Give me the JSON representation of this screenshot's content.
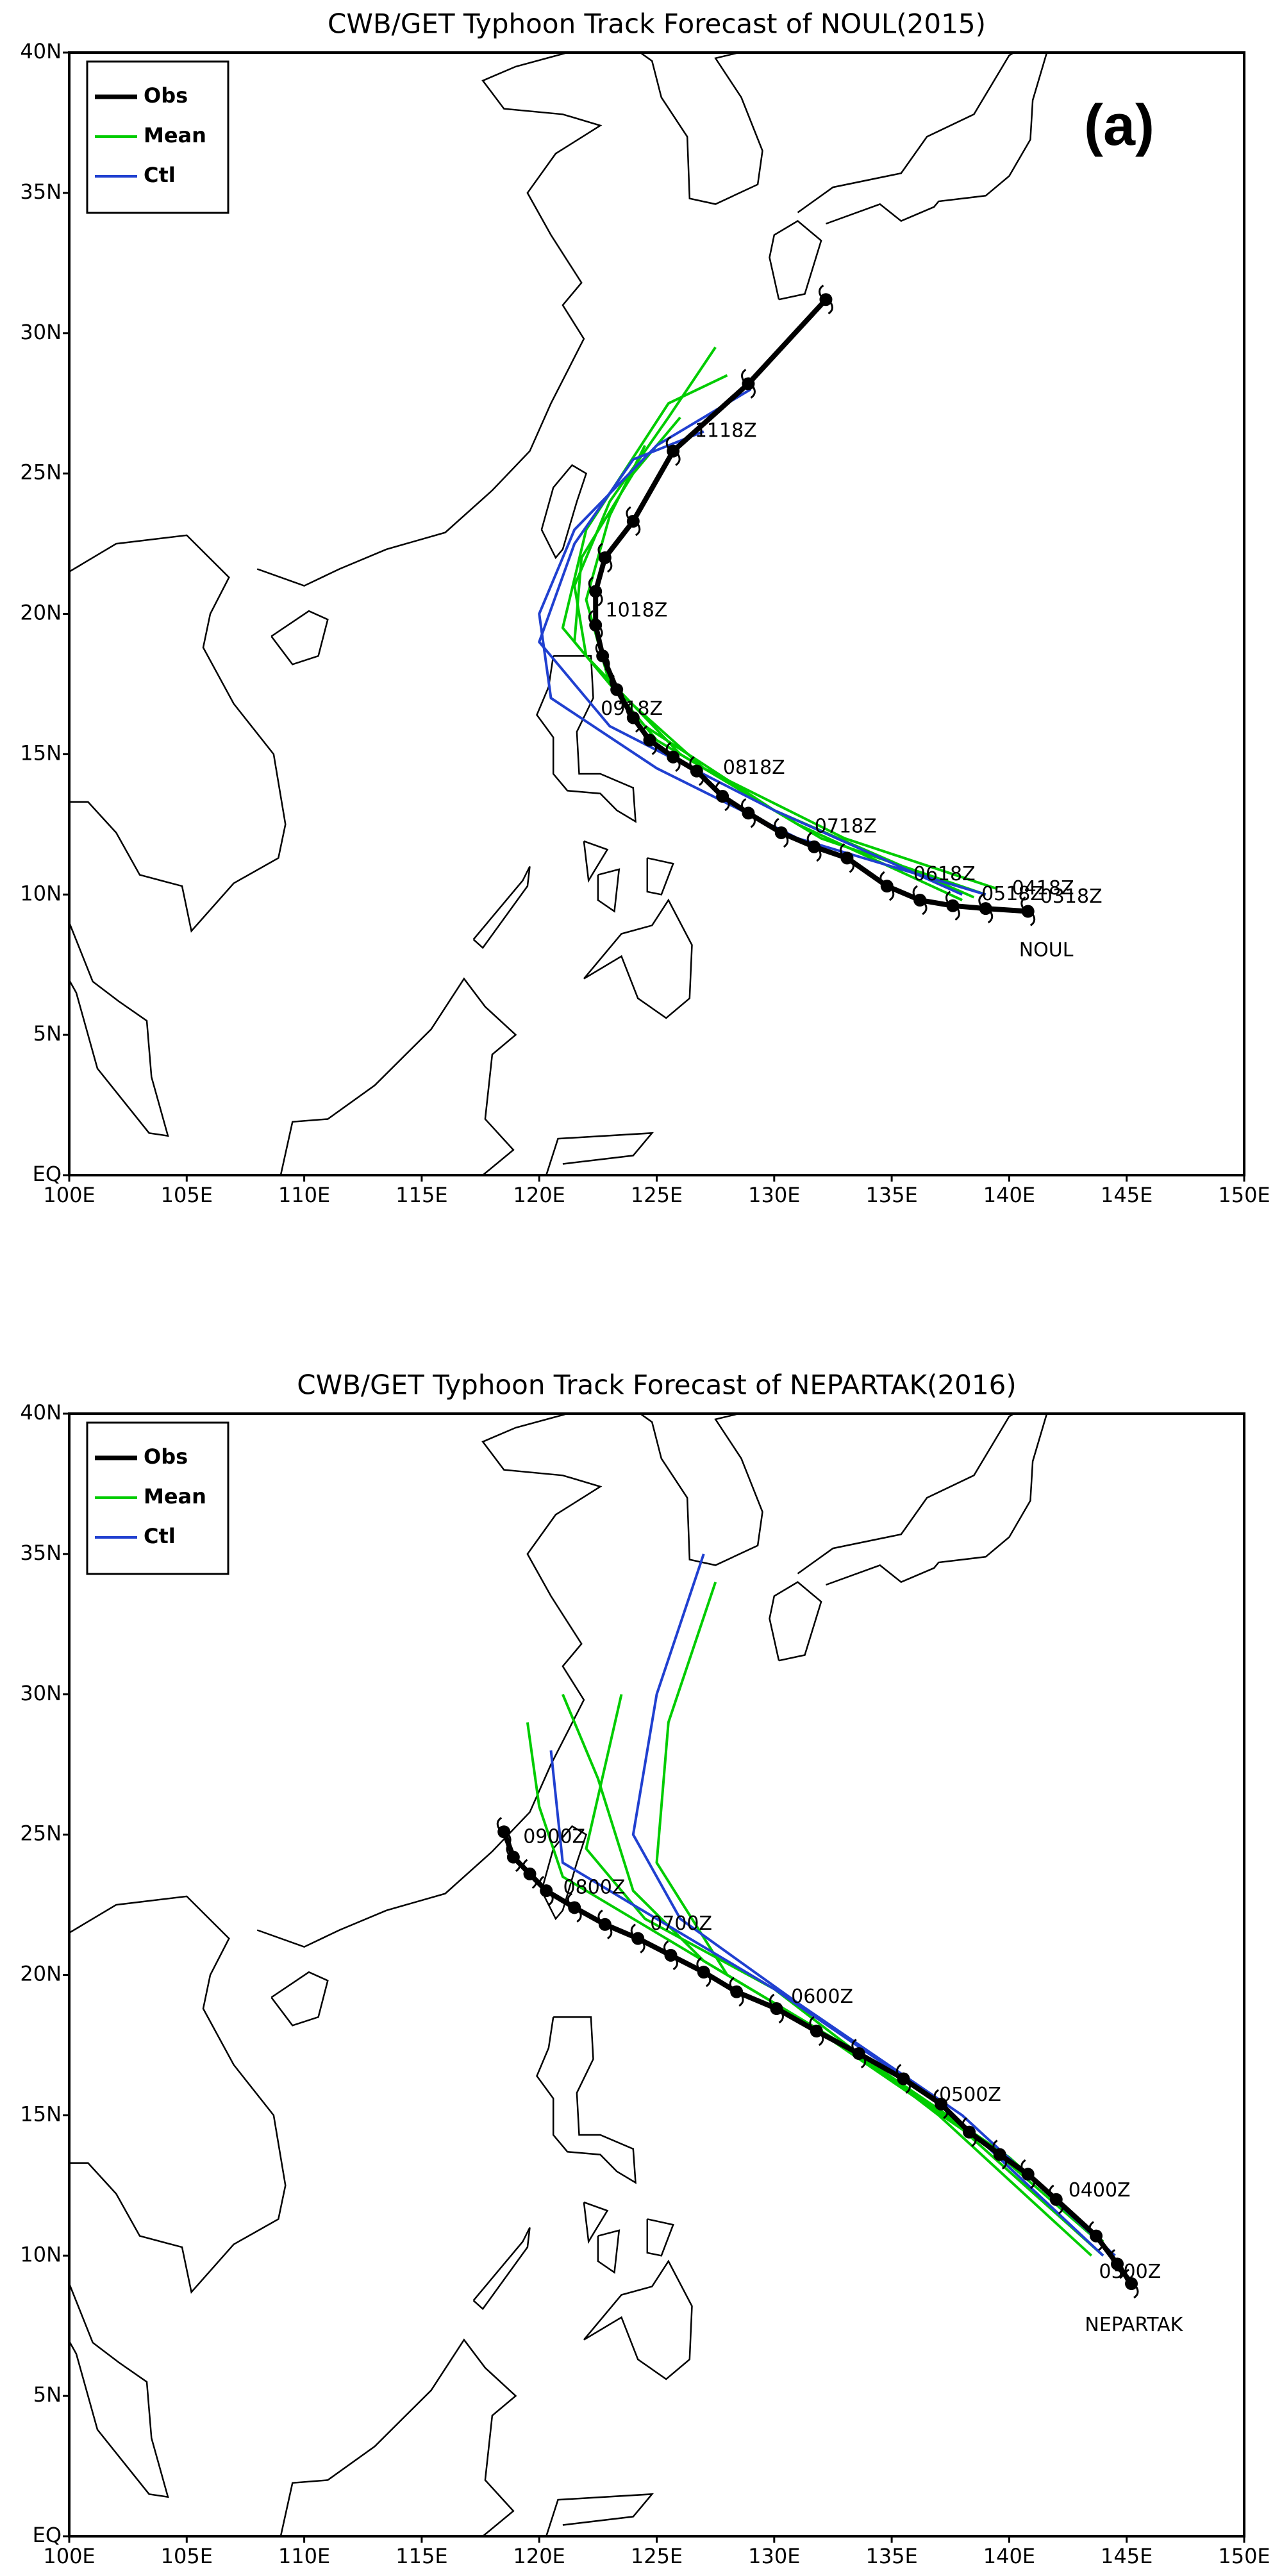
{
  "chart_data": [
    {
      "type": "line",
      "title": "CWB/GET Typhoon Track Forecast of NOUL(2015)",
      "panel_label": "(a)",
      "xlim": [
        100,
        150
      ],
      "ylim": [
        0,
        40
      ],
      "xticks": [
        {
          "value": 100,
          "label": "100E"
        },
        {
          "value": 105,
          "label": "105E"
        },
        {
          "value": 110,
          "label": "110E"
        },
        {
          "value": 115,
          "label": "115E"
        },
        {
          "value": 120,
          "label": "120E"
        },
        {
          "value": 125,
          "label": "125E"
        },
        {
          "value": 130,
          "label": "130E"
        },
        {
          "value": 135,
          "label": "135E"
        },
        {
          "value": 140,
          "label": "140E"
        },
        {
          "value": 145,
          "label": "145E"
        },
        {
          "value": 150,
          "label": "150E"
        }
      ],
      "yticks": [
        {
          "value": 0,
          "label": "EQ"
        },
        {
          "value": 5,
          "label": "5N"
        },
        {
          "value": 10,
          "label": "10N"
        },
        {
          "value": 15,
          "label": "15N"
        },
        {
          "value": 20,
          "label": "20N"
        },
        {
          "value": 25,
          "label": "25N"
        },
        {
          "value": 30,
          "label": "30N"
        },
        {
          "value": 35,
          "label": "35N"
        },
        {
          "value": 40,
          "label": "40N"
        }
      ],
      "legend": "upper left",
      "series": [
        {
          "name": "Obs",
          "color": "#000000",
          "x": [
            140.8,
            139.0,
            137.6,
            136.2,
            134.8,
            133.1,
            131.7,
            130.3,
            128.9,
            127.8,
            126.7,
            125.7,
            124.7,
            124.0,
            123.3,
            122.7,
            122.4,
            122.4,
            122.8,
            124.0,
            125.7,
            128.9,
            132.2
          ],
          "values": [
            9.4,
            9.5,
            9.6,
            9.8,
            10.3,
            11.3,
            11.7,
            12.2,
            12.9,
            13.5,
            14.4,
            14.9,
            15.5,
            16.3,
            17.3,
            18.5,
            19.6,
            20.8,
            22.0,
            23.3,
            25.8,
            28.2,
            31.2
          ]
        },
        {
          "name": "Mean",
          "color": "#00cc00",
          "tracks": [
            {
              "x": [
                139,
                132,
                126,
                122,
                121.5,
                123,
                125.5,
                127.5
              ],
              "values": [
                10,
                12,
                15,
                18.5,
                21,
                24,
                27,
                29.5
              ]
            },
            {
              "x": [
                138,
                131,
                125,
                121.5,
                121.8,
                124,
                126
              ],
              "values": [
                9.8,
                12.5,
                15.5,
                19,
                22,
                25,
                27
              ]
            },
            {
              "x": [
                139.5,
                133,
                127,
                123,
                122,
                123,
                124.5
              ],
              "values": [
                10.2,
                12,
                14.5,
                17.5,
                20.5,
                23.5,
                26
              ]
            },
            {
              "x": [
                138.5,
                130,
                124.5,
                121,
                122,
                125.5,
                128
              ],
              "values": [
                9.9,
                13,
                16,
                19.5,
                23,
                27.5,
                28.5
              ]
            }
          ]
        },
        {
          "name": "Ctl",
          "color": "#2040d0",
          "tracks": [
            {
              "x": [
                139,
                131,
                125,
                120.5,
                120,
                121.5,
                125,
                129
              ],
              "values": [
                10,
                12,
                14.5,
                17,
                20,
                23,
                26,
                28
              ]
            },
            {
              "x": [
                138,
                130,
                123,
                120,
                121.5,
                124,
                127
              ],
              "values": [
                10,
                13,
                16,
                19,
                22.5,
                25.5,
                26.5
              ]
            }
          ]
        }
      ],
      "annotations": [
        {
          "text": "1118Z",
          "x": 126.4,
          "y": 26.5
        },
        {
          "text": "1018Z",
          "x": 122.6,
          "y": 20.1
        },
        {
          "text": "0918Z",
          "x": 122.4,
          "y": 16.6
        },
        {
          "text": "0818Z",
          "x": 127.6,
          "y": 14.5
        },
        {
          "text": "0718Z",
          "x": 131.5,
          "y": 12.4
        },
        {
          "text": "0618Z",
          "x": 135.7,
          "y": 10.7
        },
        {
          "text": "0518Z",
          "x": 138.6,
          "y": 10.0
        },
        {
          "text": "0418Z",
          "x": 139.9,
          "y": 10.2
        },
        {
          "text": "0318Z",
          "x": 141.1,
          "y": 9.9
        },
        {
          "text": "NOUL",
          "x": 140.2,
          "y": 8.0
        }
      ]
    },
    {
      "type": "line",
      "title": "CWB/GET Typhoon Track Forecast of NEPARTAK(2016)",
      "xlim": [
        100,
        150
      ],
      "ylim": [
        0,
        40
      ],
      "xticks": [
        {
          "value": 100,
          "label": "100E"
        },
        {
          "value": 105,
          "label": "105E"
        },
        {
          "value": 110,
          "label": "110E"
        },
        {
          "value": 115,
          "label": "115E"
        },
        {
          "value": 120,
          "label": "120E"
        },
        {
          "value": 125,
          "label": "125E"
        },
        {
          "value": 130,
          "label": "130E"
        },
        {
          "value": 135,
          "label": "135E"
        },
        {
          "value": 140,
          "label": "140E"
        },
        {
          "value": 145,
          "label": "145E"
        },
        {
          "value": 150,
          "label": "150E"
        }
      ],
      "yticks": [
        {
          "value": 0,
          "label": "EQ"
        },
        {
          "value": 5,
          "label": "5N"
        },
        {
          "value": 10,
          "label": "10N"
        },
        {
          "value": 15,
          "label": "15N"
        },
        {
          "value": 20,
          "label": "20N"
        },
        {
          "value": 25,
          "label": "25N"
        },
        {
          "value": 30,
          "label": "30N"
        },
        {
          "value": 35,
          "label": "35N"
        },
        {
          "value": 40,
          "label": "40N"
        }
      ],
      "legend": "upper left",
      "series": [
        {
          "name": "Obs",
          "color": "#000000",
          "x": [
            145.2,
            144.6,
            143.7,
            142.0,
            140.8,
            139.6,
            138.3,
            137.1,
            135.5,
            133.6,
            131.8,
            130.1,
            128.4,
            127.0,
            125.6,
            124.2,
            122.8,
            121.5,
            120.3,
            119.6,
            118.9,
            118.5
          ],
          "values": [
            9.0,
            9.7,
            10.7,
            12.0,
            12.9,
            13.6,
            14.4,
            15.4,
            16.3,
            17.2,
            18.0,
            18.8,
            19.4,
            20.1,
            20.7,
            21.3,
            21.8,
            22.4,
            23.0,
            23.6,
            24.2,
            25.1
          ]
        },
        {
          "name": "Mean",
          "color": "#00cc00",
          "tracks": [
            {
              "x": [
                144,
                138,
                131,
                125,
                121,
                120,
                119.5
              ],
              "values": [
                10,
                14.5,
                18.5,
                21.5,
                23.5,
                26,
                29
              ]
            },
            {
              "x": [
                144.5,
                139,
                132,
                127,
                124,
                122.5,
                121
              ],
              "values": [
                10,
                14,
                18,
                20.5,
                23,
                27,
                30
              ]
            },
            {
              "x": [
                144,
                140,
                133,
                128,
                125,
                125.5,
                127.5
              ],
              "values": [
                10.5,
                13.5,
                17.5,
                20,
                24,
                29,
                34
              ]
            },
            {
              "x": [
                143.5,
                137,
                130,
                124.5,
                122,
                123.5
              ],
              "values": [
                10,
                15,
                19.5,
                22,
                24.5,
                30
              ]
            }
          ]
        },
        {
          "name": "Ctl",
          "color": "#2040d0",
          "tracks": [
            {
              "x": [
                144.5,
                138,
                131,
                126,
                124,
                125,
                127
              ],
              "values": [
                10,
                15,
                19,
                22,
                25,
                30,
                35
              ]
            },
            {
              "x": [
                144,
                137,
                130,
                124,
                121,
                120.5
              ],
              "values": [
                10,
                15.5,
                19.5,
                22.5,
                24,
                28
              ]
            }
          ]
        }
      ],
      "annotations": [
        {
          "text": "0900Z",
          "x": 119.1,
          "y": 24.9
        },
        {
          "text": "0800Z",
          "x": 120.8,
          "y": 23.1
        },
        {
          "text": "0700Z",
          "x": 124.5,
          "y": 21.8
        },
        {
          "text": "0600Z",
          "x": 130.5,
          "y": 19.2
        },
        {
          "text": "0500Z",
          "x": 136.8,
          "y": 15.7
        },
        {
          "text": "0400Z",
          "x": 142.3,
          "y": 12.3
        },
        {
          "text": "0300Z",
          "x": 143.6,
          "y": 9.4
        },
        {
          "text": "NEPARTAK",
          "x": 143.0,
          "y": 7.5
        }
      ]
    }
  ]
}
